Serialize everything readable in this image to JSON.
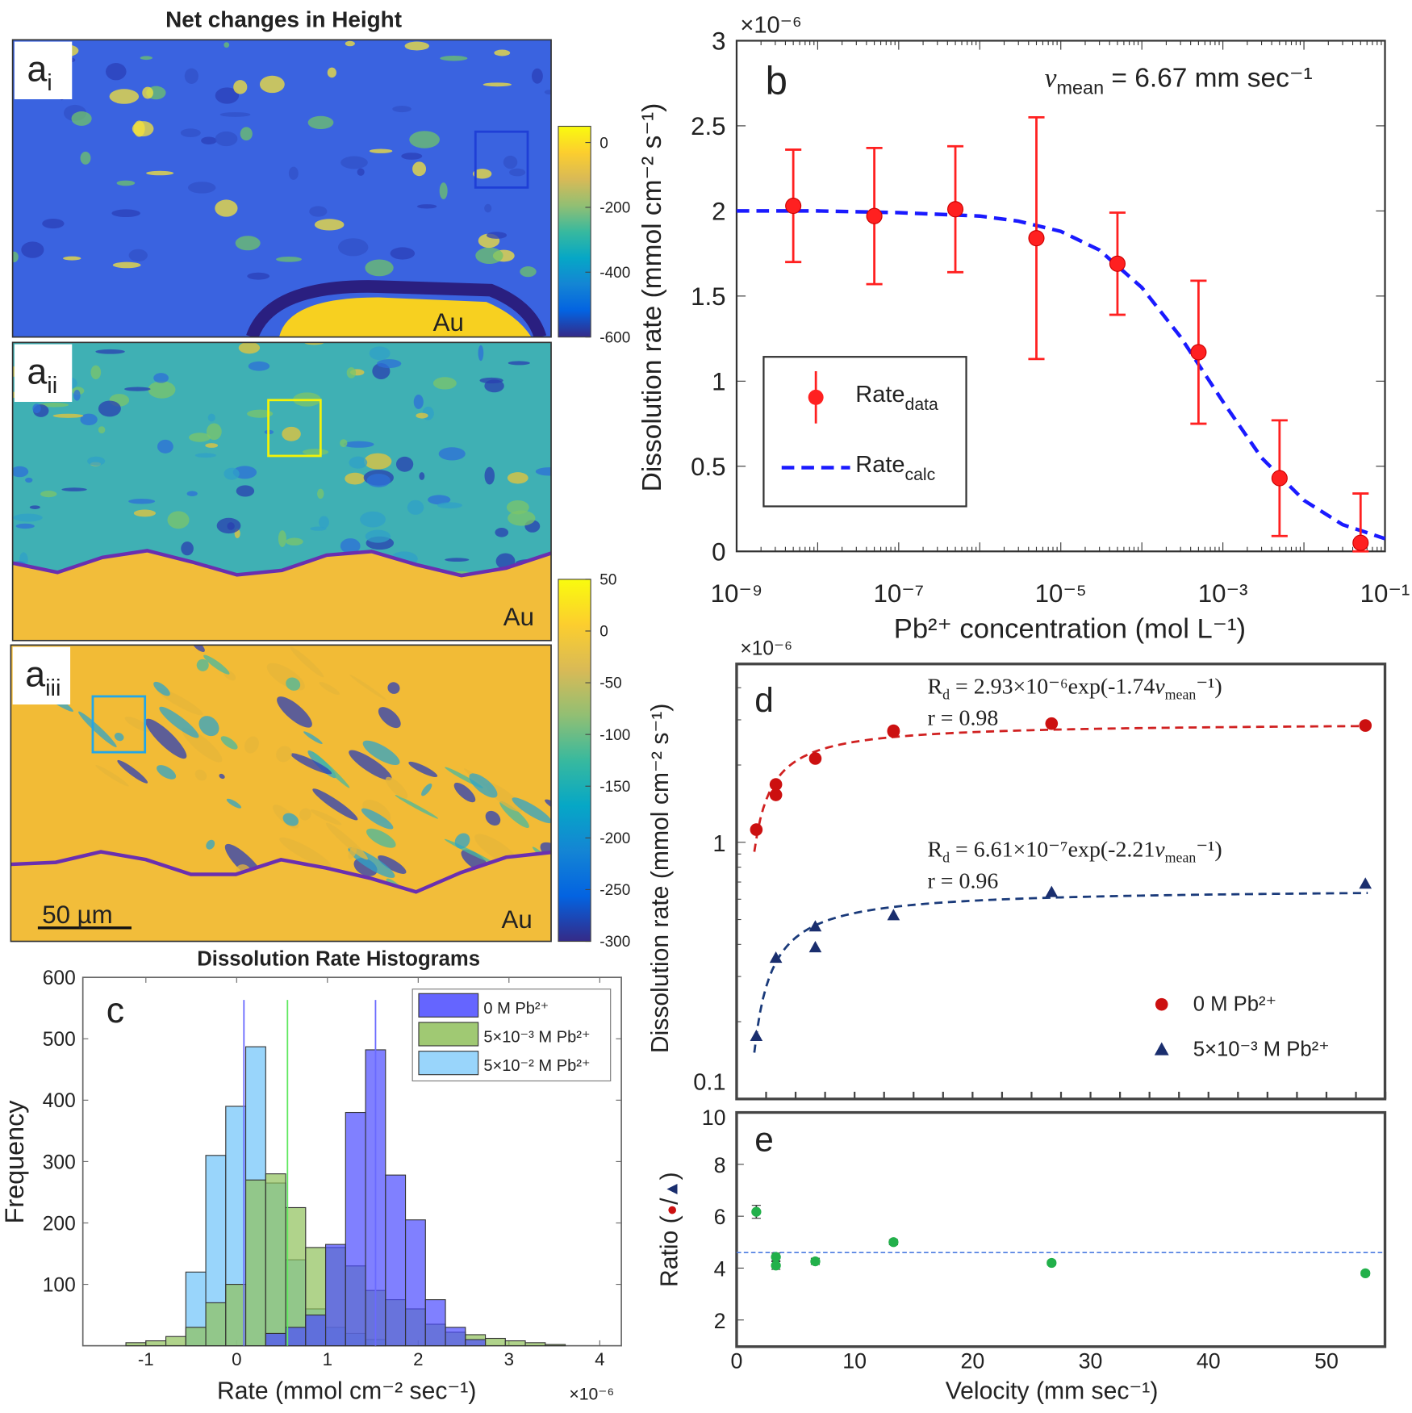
{
  "panel_a": {
    "title": "Net changes in Height",
    "colormap": "parula",
    "colormap_colors": [
      "#352a87",
      "#0363e1",
      "#1485d4",
      "#06a7c6",
      "#38b99e",
      "#92bf73",
      "#d9ba56",
      "#fcce2e",
      "#f9fb0e"
    ],
    "maps": [
      {
        "label": "a",
        "sub": "i",
        "substrate_label": "Au",
        "roi_color": "#1f3fd6",
        "base_color": "#3a63e0"
      },
      {
        "label": "a",
        "sub": "ii",
        "substrate_label": "Au",
        "roi_color": "#f2f20a",
        "base_color": "#3fb0b4"
      },
      {
        "label": "a",
        "sub": "iii",
        "substrate_label": "Au",
        "roi_color": "#22a6e8",
        "base_color": "#f2bb36"
      }
    ],
    "boundary_color": "#6a2fb0",
    "scale_bar": "50 µm",
    "colorbar_1": {
      "ticks": [
        "0",
        "-200",
        "-400",
        "-600"
      ],
      "range": [
        -600,
        0
      ]
    },
    "colorbar_2": {
      "ticks": [
        "50",
        "0",
        "-50",
        "-100",
        "-150",
        "-200",
        "-250",
        "-300"
      ],
      "range": [
        -300,
        50
      ]
    }
  },
  "chart_data": [
    {
      "panel": "b",
      "type": "scatter",
      "panel_label": "b",
      "xscale": "log",
      "xlim": [
        1e-09,
        0.1
      ],
      "ylim": [
        0,
        3
      ],
      "y_multiplier": "×10⁻⁶",
      "xlabel": "Pb²⁺ concentration (mol L⁻¹)",
      "ylabel": "Dissolution rate (mmol cm⁻² s⁻¹)",
      "x_tick_labels": [
        "10⁻⁹",
        "10⁻⁷",
        "10⁻⁵",
        "10⁻³",
        "10⁻¹"
      ],
      "x_tick_values": [
        1e-09,
        1e-07,
        1e-05,
        0.001,
        0.1
      ],
      "y_ticks": [
        0,
        0.5,
        1,
        1.5,
        2,
        2.5,
        3
      ],
      "y_tick_labels": [
        "0",
        "0.5",
        "1",
        "1.5",
        "2",
        "2.5",
        "3"
      ],
      "annotation": {
        "v": "v",
        "sub": "mean",
        "rest": " = 6.67 mm sec⁻¹"
      },
      "legend": [
        {
          "base": "Rate",
          "sub": "data",
          "color": "#ff2020",
          "marker": "circle"
        },
        {
          "base": "Rate",
          "sub": "calc",
          "color": "#1a1aff",
          "marker": "dashed-line"
        }
      ],
      "series_data": {
        "x": [
          5e-09,
          5e-08,
          5e-07,
          5e-06,
          5e-05,
          0.0005,
          0.005,
          0.05
        ],
        "y": [
          2.03,
          1.97,
          2.01,
          1.84,
          1.69,
          1.17,
          0.43,
          0.05
        ],
        "err_low": [
          0.33,
          0.4,
          0.37,
          0.71,
          0.3,
          0.42,
          0.34,
          0.05
        ],
        "err_high": [
          0.33,
          0.4,
          0.37,
          0.71,
          0.3,
          0.42,
          0.34,
          0.29
        ]
      },
      "series_calc": {
        "x": [
          1e-09,
          1e-08,
          1e-07,
          1e-06,
          3e-06,
          1e-05,
          3e-05,
          0.0001,
          0.0003,
          0.001,
          0.003,
          0.01,
          0.03,
          0.1
        ],
        "y": [
          2.0,
          2.0,
          1.99,
          1.97,
          1.94,
          1.88,
          1.77,
          1.55,
          1.26,
          0.88,
          0.55,
          0.3,
          0.157,
          0.075
        ]
      }
    },
    {
      "panel": "c",
      "type": "bar",
      "title": "Dissolution Rate Histograms",
      "panel_label": "c",
      "xlabel": "Rate (mmol cm⁻² sec⁻¹)",
      "ylabel": "Frequency",
      "x_multiplier": "×10⁻⁶",
      "xlim": [
        -1.7,
        4.25
      ],
      "ylim": [
        0,
        600
      ],
      "x_ticks": [
        -1,
        0,
        1,
        2,
        3,
        4
      ],
      "x_tick_labels": [
        "-1",
        "0",
        "1",
        "2",
        "3",
        "4"
      ],
      "y_ticks": [
        100,
        200,
        300,
        400,
        500,
        600
      ],
      "y_tick_labels": [
        "100",
        "200",
        "300",
        "400",
        "500",
        "600"
      ],
      "bin_width": 0.22,
      "series": [
        {
          "name": "5×10⁻² M Pb²⁺",
          "color": "#87cefa",
          "centers": [
            -0.45,
            -0.23,
            -0.01,
            0.21,
            0.43,
            0.65,
            0.87,
            1.09,
            1.31,
            1.53
          ],
          "values": [
            120,
            310,
            390,
            487,
            265,
            140,
            60,
            30,
            20,
            10
          ]
        },
        {
          "name": "5×10⁻³ M Pb²⁺",
          "color": "#8fc05a",
          "centers": [
            -1.11,
            -0.89,
            -0.67,
            -0.45,
            -0.23,
            -0.01,
            0.21,
            0.43,
            0.65,
            0.87,
            1.09,
            1.31,
            1.53,
            1.75,
            1.97,
            2.19,
            2.41,
            2.63,
            2.85,
            3.07,
            3.29,
            3.51
          ],
          "values": [
            5,
            8,
            15,
            30,
            70,
            100,
            270,
            280,
            225,
            160,
            160,
            130,
            90,
            75,
            60,
            35,
            22,
            18,
            12,
            8,
            5,
            2
          ]
        },
        {
          "name": "0 M Pb²⁺",
          "color": "#4a4aff",
          "centers": [
            0.43,
            0.65,
            0.87,
            1.09,
            1.31,
            1.53,
            1.75,
            1.97,
            2.19,
            2.41,
            2.63
          ],
          "values": [
            20,
            30,
            50,
            165,
            380,
            482,
            278,
            205,
            75,
            30,
            10
          ]
        }
      ],
      "legend_order": [
        "0 M Pb²⁺",
        "5×10⁻³ M Pb²⁺",
        "5×10⁻² M Pb²⁺"
      ],
      "mean_lines": [
        {
          "x": 0.08,
          "color": "#6a6aff"
        },
        {
          "x": 0.56,
          "color": "#5ee85e"
        },
        {
          "x": 1.53,
          "color": "#6a6aff"
        }
      ]
    },
    {
      "panel": "d",
      "type": "scatter",
      "panel_label": "d",
      "yscale": "log",
      "xlim": [
        0,
        55
      ],
      "ylim": [
        0.1,
        5
      ],
      "y_multiplier": "×10⁻⁶",
      "ylabel": "Dissolution rate (mmol cm⁻² s⁻¹)",
      "y_tick_values": [
        0.1,
        1
      ],
      "y_tick_labels": [
        "0.1",
        "1"
      ],
      "fits": [
        {
          "A": 2.93,
          "B": 1.74,
          "color": "#d02020",
          "eq": {
            "R": "R",
            "sub": "d",
            "rest": " = 2.93×10⁻⁶exp(-1.74",
            "v": "v",
            "vsub": "mean",
            "end": "⁻¹)"
          },
          "r": "r = 0.98"
        },
        {
          "A": 0.661,
          "B": 2.21,
          "color": "#1a3a7a",
          "eq": {
            "R": "R",
            "sub": "d",
            "rest": " = 6.61×10⁻⁷exp(-2.21",
            "v": "v",
            "vsub": "mean",
            "end": "⁻¹)"
          },
          "r": "r = 0.96"
        }
      ],
      "series": [
        {
          "name": "0 M Pb²⁺",
          "color": "#cc1010",
          "marker": "circle",
          "x": [
            1.67,
            3.33,
            3.33,
            6.67,
            13.3,
            13.3,
            26.7,
            53.3
          ],
          "y": [
            1.12,
            1.68,
            1.53,
            2.12,
            2.72,
            2.7,
            2.9,
            2.85
          ]
        },
        {
          "name": "5×10⁻³ M Pb²⁺",
          "color": "#1a2e6e",
          "marker": "triangle",
          "x": [
            1.67,
            3.33,
            6.67,
            6.67,
            13.3,
            26.7,
            53.3
          ],
          "y": [
            0.176,
            0.355,
            0.47,
            0.39,
            0.52,
            0.64,
            0.69
          ]
        }
      ]
    },
    {
      "panel": "e",
      "type": "scatter",
      "panel_label": "e",
      "xlim": [
        0,
        55
      ],
      "ylim": [
        1,
        10
      ],
      "xlabel": "Velocity (mm sec⁻¹)",
      "ylabel_parts": {
        "text": "Ratio (",
        "sep": "/",
        "close": ")",
        "circle_color": "#cc1010",
        "triangle_color": "#1a2e6e"
      },
      "x_ticks": [
        0,
        10,
        20,
        30,
        40,
        50
      ],
      "x_tick_labels": [
        "0",
        "10",
        "20",
        "30",
        "40",
        "50"
      ],
      "y_ticks": [
        2,
        4,
        6,
        8,
        10
      ],
      "y_tick_labels": [
        "2",
        "4",
        "6",
        "8",
        "10"
      ],
      "mean_line": {
        "y": 4.6,
        "color": "#4a7ae0"
      },
      "series": [
        {
          "color": "#22b04a",
          "x": [
            1.67,
            3.33,
            3.33,
            6.67,
            13.3,
            26.7,
            53.3
          ],
          "y": [
            6.17,
            4.43,
            4.1,
            4.26,
            5.0,
            4.2,
            3.8
          ],
          "err": [
            0.25,
            0.15,
            0.15,
            0.12,
            0.1,
            0.08,
            0.08
          ]
        }
      ]
    }
  ]
}
